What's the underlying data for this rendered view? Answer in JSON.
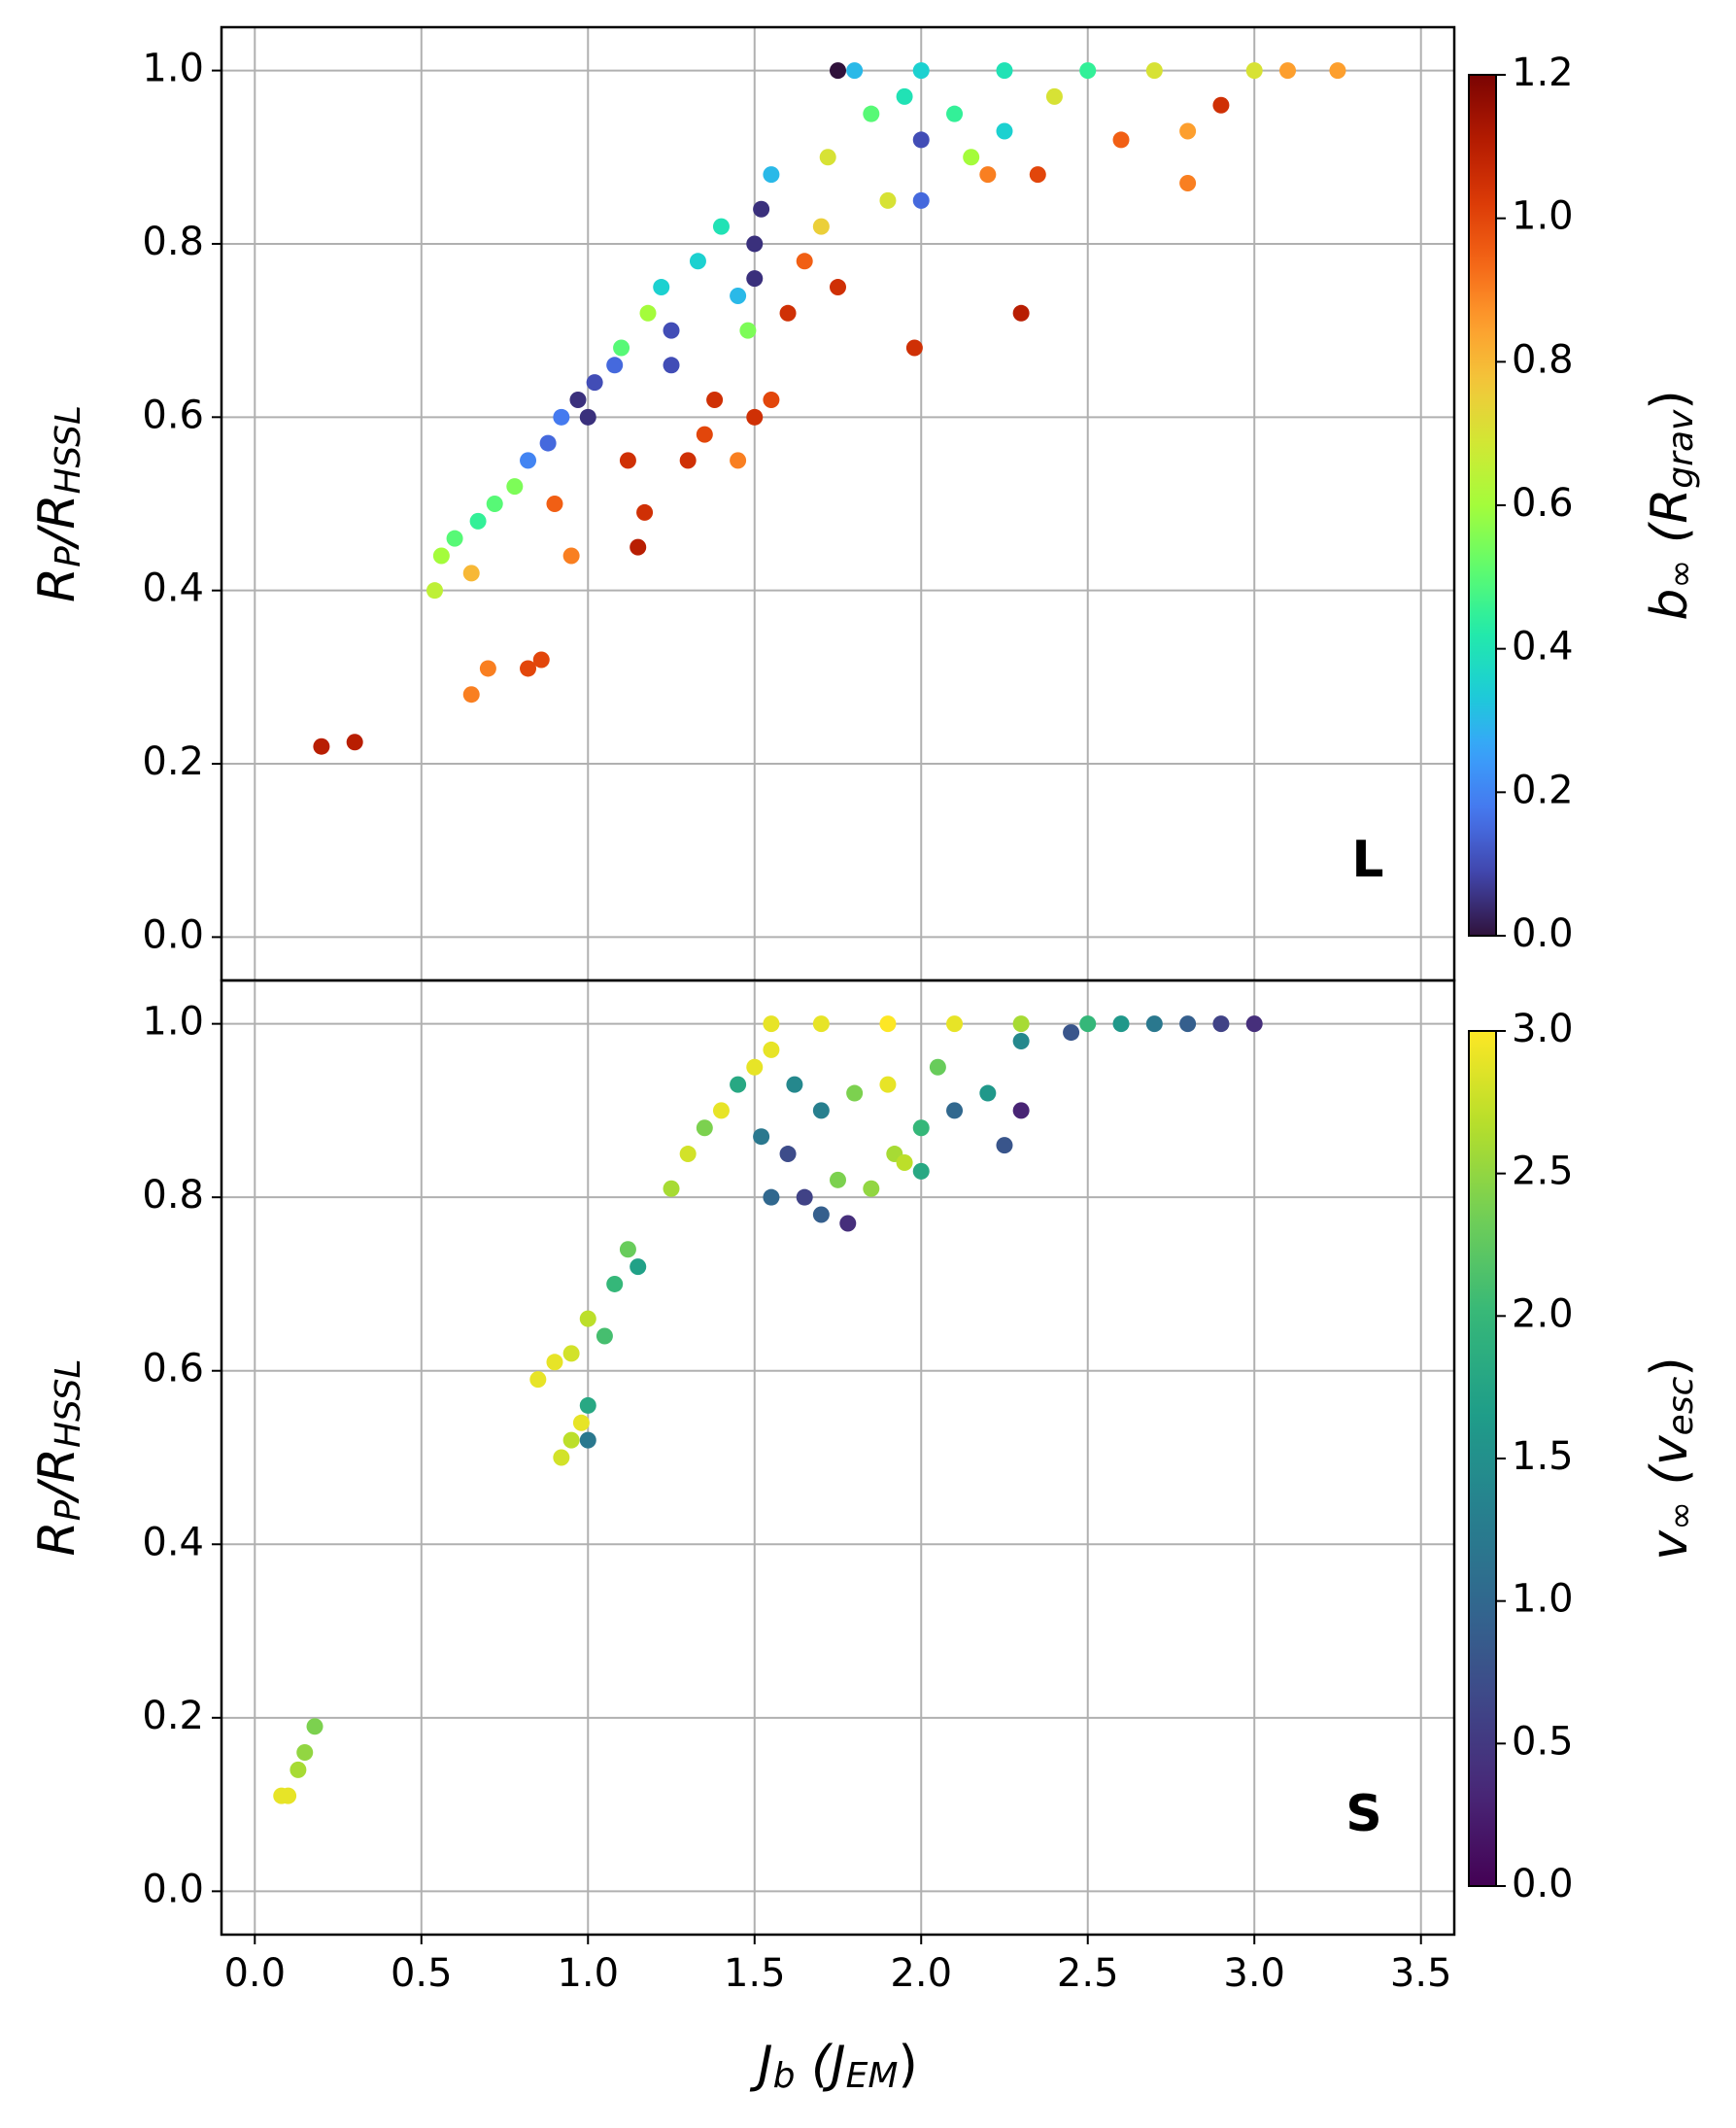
{
  "chart_data": [
    {
      "type": "scatter",
      "ylabel": [
        "R",
        "P",
        "/R",
        "HSSL"
      ],
      "annotation": "L",
      "ylim": [
        -0.05,
        1.05
      ],
      "yticks": [
        {
          "value": 0,
          "label": "0.0"
        },
        0.2,
        0.4,
        0.6,
        0.8,
        {
          "value": 1,
          "label": "1.0"
        }
      ],
      "grid": true,
      "colormap": "turbo",
      "colorbar": {
        "label": [
          "b",
          "∞",
          " (R",
          "grav",
          ")"
        ],
        "lim": [
          0,
          1.2
        ],
        "ticks": [
          {
            "value": 0,
            "label": "0.0"
          },
          0.2,
          0.4,
          0.6,
          0.8,
          {
            "value": 1,
            "label": "1.0"
          },
          1.2
        ]
      },
      "x": [
        0.2,
        0.3,
        0.65,
        0.7,
        0.82,
        0.86,
        0.54,
        0.56,
        0.6,
        0.65,
        0.67,
        0.72,
        0.78,
        0.82,
        0.88,
        0.92,
        0.97,
        1.0,
        1.02,
        1.08,
        0.9,
        0.95,
        1.15,
        1.17,
        1.12,
        1.1,
        1.18,
        1.22,
        1.25,
        1.25,
        1.3,
        1.35,
        1.38,
        1.33,
        1.4,
        1.45,
        1.48,
        1.5,
        1.5,
        1.52,
        1.55,
        1.45,
        1.5,
        1.55,
        1.6,
        1.65,
        1.7,
        1.75,
        1.72,
        1.75,
        1.8,
        1.85,
        1.9,
        1.95,
        2.0,
        2.0,
        2.0,
        2.1,
        2.15,
        2.2,
        2.25,
        2.25,
        2.3,
        2.35,
        2.4,
        2.5,
        2.6,
        2.7,
        2.8,
        2.9,
        3.0,
        3.1,
        3.25,
        1.98,
        2.8
      ],
      "values": [
        0.22,
        0.225,
        0.28,
        0.31,
        0.31,
        0.32,
        0.4,
        0.44,
        0.46,
        0.42,
        0.48,
        0.5,
        0.52,
        0.55,
        0.57,
        0.6,
        0.62,
        0.6,
        0.64,
        0.66,
        0.5,
        0.44,
        0.45,
        0.49,
        0.55,
        0.68,
        0.72,
        0.75,
        0.7,
        0.66,
        0.55,
        0.58,
        0.62,
        0.78,
        0.82,
        0.74,
        0.7,
        0.8,
        0.76,
        0.84,
        0.88,
        0.55,
        0.6,
        0.62,
        0.72,
        0.78,
        0.82,
        0.75,
        0.9,
        1.0,
        1.0,
        0.95,
        0.85,
        0.97,
        0.92,
        0.85,
        1.0,
        0.95,
        0.9,
        0.88,
        0.93,
        1.0,
        0.72,
        0.88,
        0.97,
        1.0,
        0.92,
        1.0,
        0.93,
        0.96,
        1.0,
        1.0,
        1.0,
        0.68,
        0.87
      ],
      "color_values": [
        1.1,
        1.1,
        0.9,
        0.9,
        1.0,
        1.0,
        0.65,
        0.6,
        0.5,
        0.8,
        0.45,
        0.5,
        0.55,
        0.2,
        0.15,
        0.18,
        0.05,
        0.05,
        0.1,
        0.15,
        0.95,
        0.9,
        1.1,
        1.05,
        1.05,
        0.5,
        0.6,
        0.35,
        0.1,
        0.1,
        1.05,
        1.0,
        1.05,
        0.35,
        0.4,
        0.3,
        0.55,
        0.05,
        0.05,
        0.05,
        0.3,
        0.9,
        1.05,
        1.0,
        1.05,
        0.95,
        0.75,
        1.05,
        0.7,
        0.0,
        0.3,
        0.5,
        0.7,
        0.4,
        0.1,
        0.15,
        0.35,
        0.45,
        0.6,
        0.9,
        0.35,
        0.4,
        1.1,
        1.0,
        0.7,
        0.45,
        0.95,
        0.7,
        0.85,
        1.05,
        0.7,
        0.85,
        0.85,
        1.05,
        0.9
      ]
    },
    {
      "type": "scatter",
      "xlabel": [
        "J",
        "b",
        " (J",
        "EM",
        ")"
      ],
      "ylabel": [
        "R",
        "P",
        "/R",
        "HSSL"
      ],
      "annotation": "S",
      "xlim": [
        -0.1,
        3.6
      ],
      "xticks": [
        {
          "value": 0,
          "label": "0.0"
        },
        0.5,
        {
          "value": 1,
          "label": "1.0"
        },
        1.5,
        {
          "value": 2,
          "label": "2.0"
        },
        2.5,
        {
          "value": 3,
          "label": "3.0"
        },
        3.5
      ],
      "ylim": [
        -0.05,
        1.05
      ],
      "yticks": [
        {
          "value": 0,
          "label": "0.0"
        },
        0.2,
        0.4,
        0.6,
        0.8,
        {
          "value": 1,
          "label": "1.0"
        }
      ],
      "grid": true,
      "colormap": "viridis",
      "colorbar": {
        "label": [
          "v",
          "∞",
          " (v",
          "esc",
          ")"
        ],
        "lim": [
          0,
          3
        ],
        "ticks": [
          {
            "value": 0,
            "label": "0.0"
          },
          0.5,
          {
            "value": 1,
            "label": "1.0"
          },
          1.5,
          {
            "value": 2,
            "label": "2.0"
          },
          2.5,
          {
            "value": 3,
            "label": "3.0"
          }
        ]
      },
      "x": [
        0.08,
        0.1,
        0.13,
        0.15,
        0.18,
        0.85,
        0.9,
        0.95,
        1.0,
        1.0,
        1.0,
        0.92,
        0.95,
        0.98,
        1.05,
        1.08,
        1.12,
        1.15,
        1.25,
        1.3,
        1.35,
        1.4,
        1.45,
        1.5,
        1.55,
        1.52,
        1.55,
        1.6,
        1.65,
        1.7,
        1.75,
        1.78,
        1.85,
        1.8,
        1.9,
        1.92,
        2.0,
        2.0,
        2.05,
        2.1,
        2.2,
        2.25,
        2.3,
        2.3,
        2.45,
        1.55,
        1.7,
        1.9,
        2.1,
        2.3,
        2.5,
        2.6,
        2.7,
        2.8,
        2.9,
        3.0,
        1.62,
        1.7,
        1.95
      ],
      "values": [
        0.11,
        0.11,
        0.14,
        0.16,
        0.19,
        0.59,
        0.61,
        0.62,
        0.66,
        0.56,
        0.52,
        0.5,
        0.52,
        0.54,
        0.64,
        0.7,
        0.74,
        0.72,
        0.81,
        0.85,
        0.88,
        0.9,
        0.93,
        0.95,
        0.97,
        0.87,
        0.8,
        0.85,
        0.8,
        0.78,
        0.82,
        0.77,
        0.81,
        0.92,
        0.93,
        0.85,
        0.83,
        0.88,
        0.95,
        0.9,
        0.92,
        0.86,
        0.9,
        0.98,
        0.99,
        1.0,
        1.0,
        1.0,
        1.0,
        1.0,
        1.0,
        1.0,
        1.0,
        1.0,
        1.0,
        1.0,
        0.93,
        0.9,
        0.84
      ],
      "color_values": [
        2.9,
        2.9,
        2.6,
        2.5,
        2.4,
        2.9,
        2.9,
        2.8,
        2.7,
        1.8,
        1.2,
        2.8,
        2.7,
        2.9,
        2.1,
        2.0,
        2.3,
        1.7,
        2.6,
        2.8,
        2.4,
        2.9,
        1.8,
        2.9,
        2.9,
        1.2,
        1.0,
        0.7,
        0.6,
        0.9,
        2.4,
        0.4,
        2.5,
        2.4,
        2.9,
        2.6,
        1.8,
        2.0,
        2.3,
        1.0,
        1.6,
        0.8,
        0.3,
        1.4,
        0.8,
        2.9,
        2.9,
        3.0,
        2.9,
        2.6,
        2.0,
        1.6,
        1.2,
        0.9,
        0.6,
        0.4,
        1.4,
        1.3,
        2.7
      ]
    }
  ]
}
